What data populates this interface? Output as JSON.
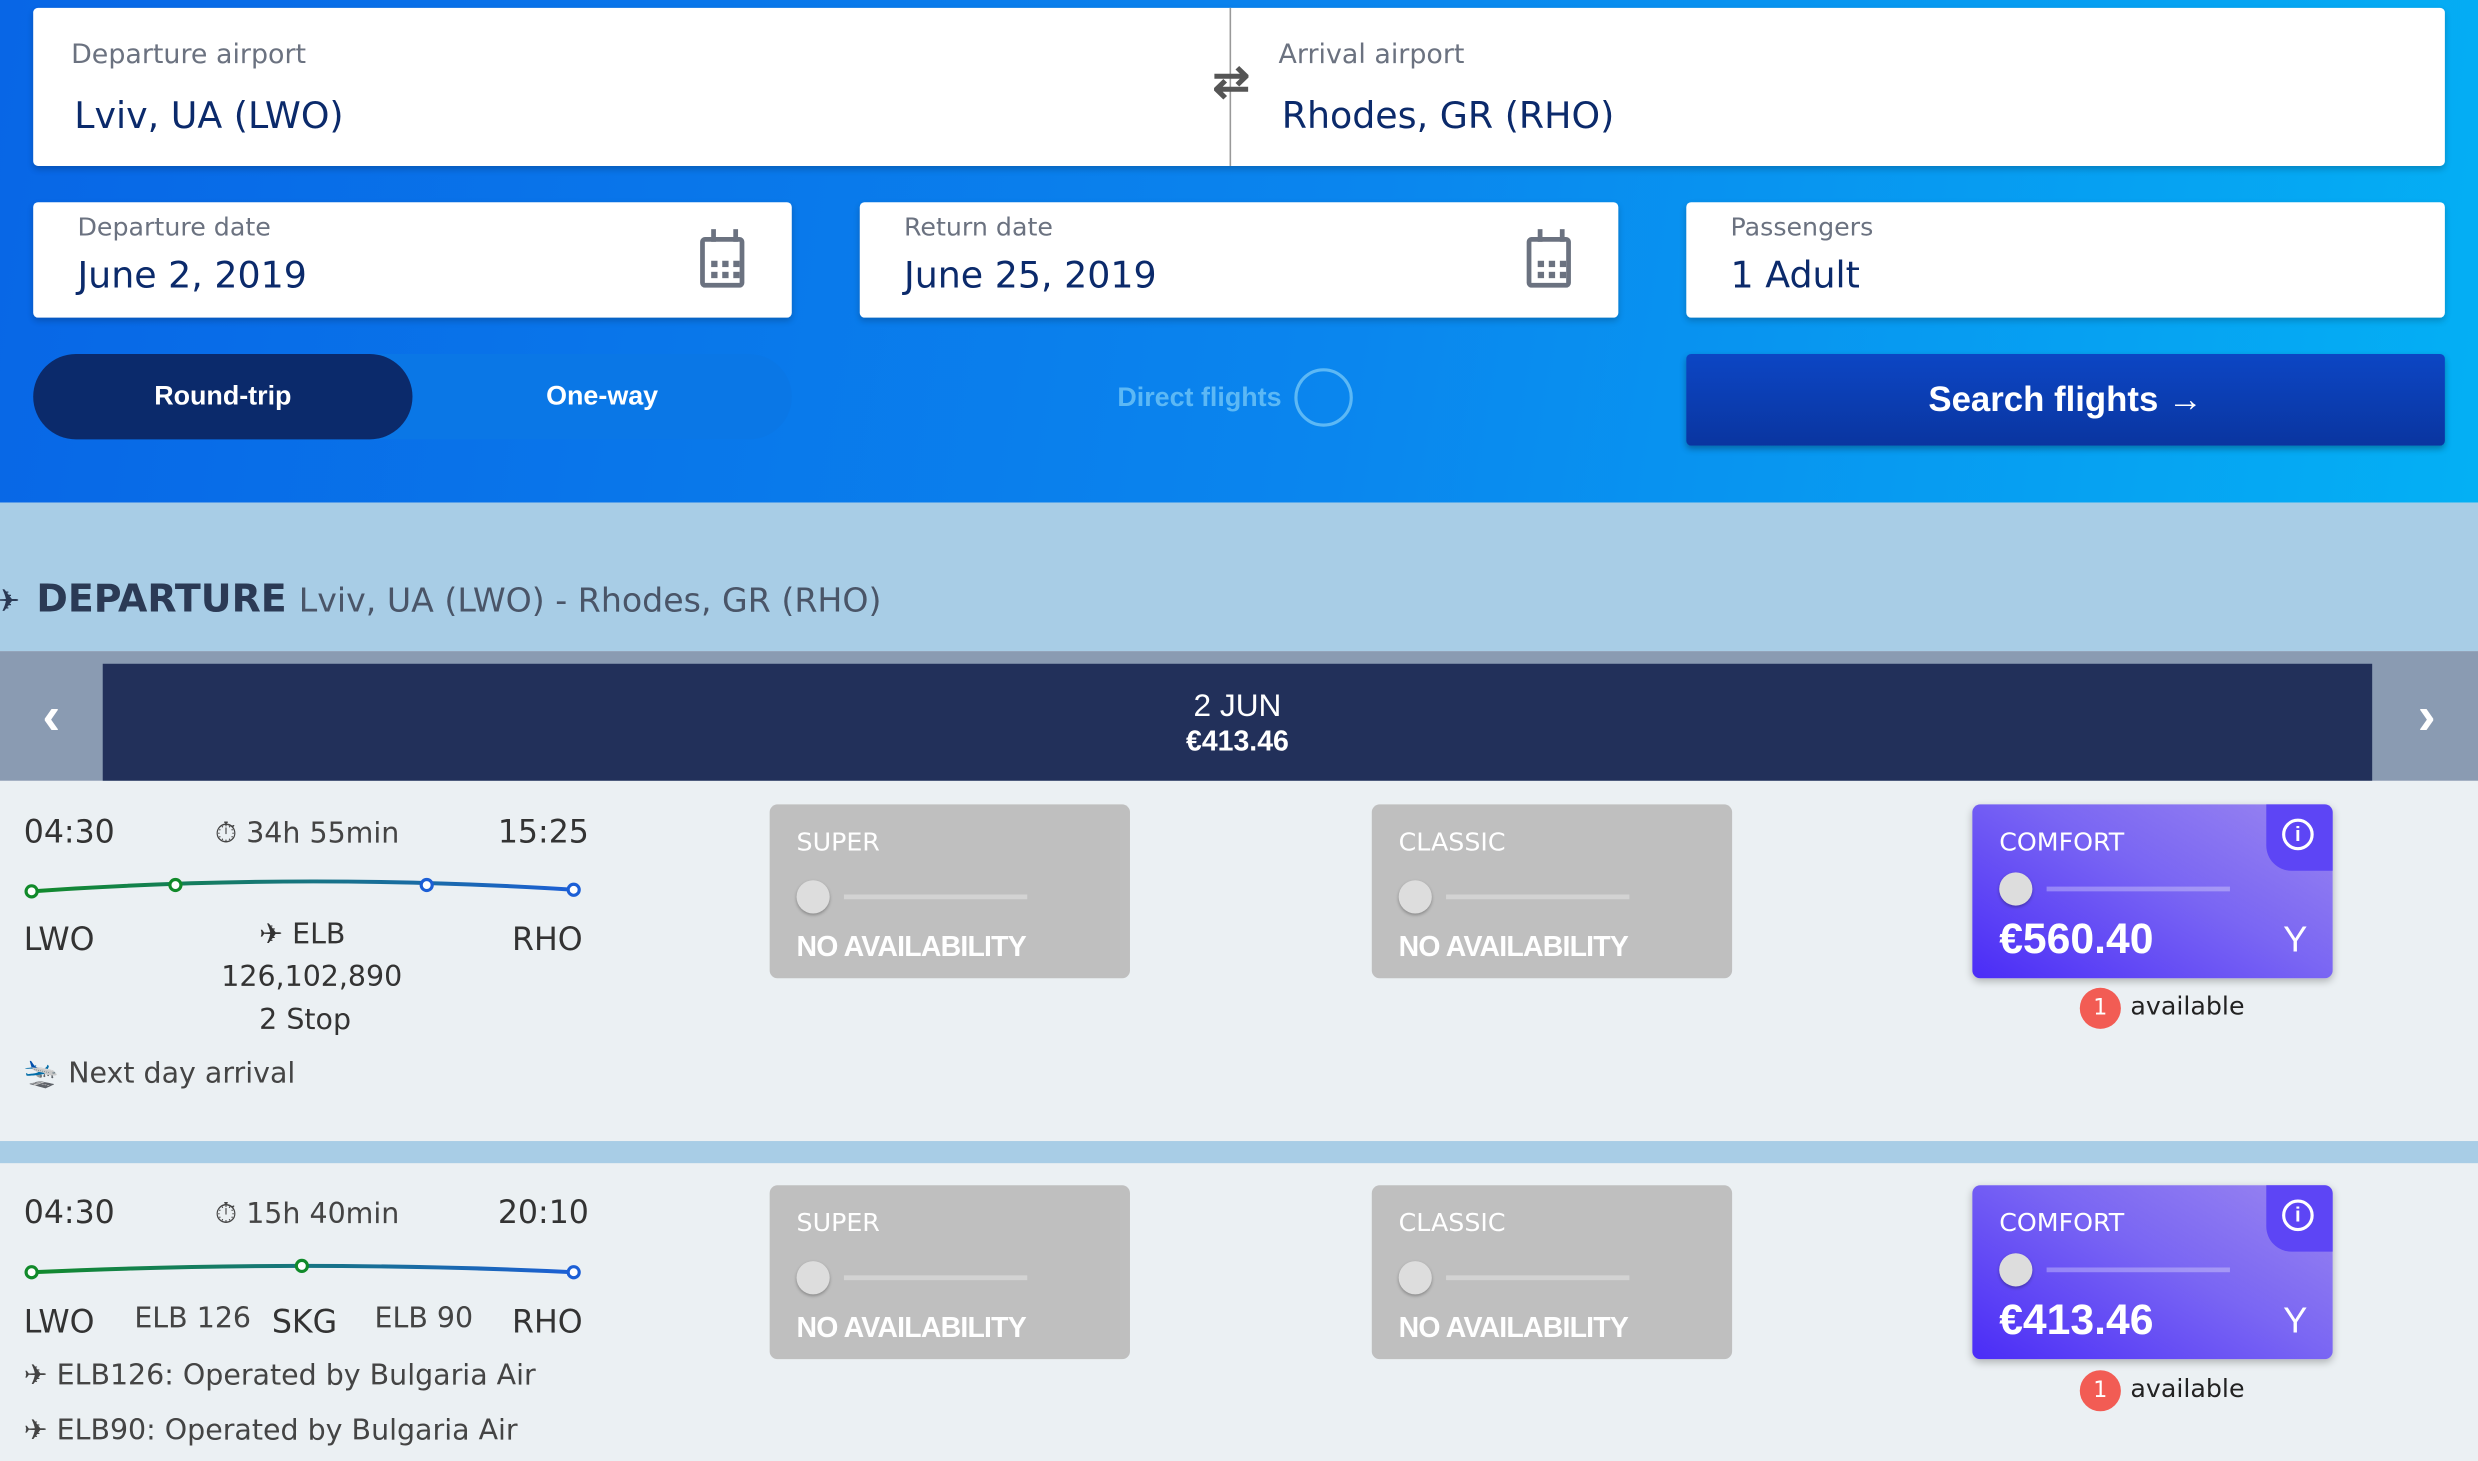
{
  "search": {
    "departure_label": "Departure airport",
    "departure_value": "Lviv, UA (LWO)",
    "arrival_label": "Arrival airport",
    "arrival_value": "Rhodes, GR (RHO)",
    "departure_date_label": "Departure date",
    "departure_date": "June 2, 2019",
    "return_date_label": "Return date",
    "return_date": "June 25, 2019",
    "passengers_label": "Passengers",
    "passengers": "1 Adult",
    "round_trip": "Round-trip",
    "one_way": "One-way",
    "trip_selected": "Round-trip",
    "direct_flights": "Direct flights",
    "direct_flights_on": false,
    "search_button": "Search flights"
  },
  "section": {
    "title": "DEPARTURE",
    "route": "Lviv, UA (LWO) - Rhodes, GR (RHO)"
  },
  "date_strip": {
    "date": "2 JUN",
    "price": "€413.46"
  },
  "flights": [
    {
      "dep": "04:30",
      "duration": "34h 55min",
      "arr": "15:25",
      "from": "LWO",
      "to": "RHO",
      "carrier": "ELB",
      "flight_numbers": "126,102,890",
      "stops": "2 Stop",
      "note": "Next day arrival",
      "fares": [
        {
          "name": "SUPER",
          "status": "NO AVAILABILITY"
        },
        {
          "name": "CLASSIC",
          "status": "NO AVAILABILITY"
        },
        {
          "name": "COMFORT",
          "price": "€560.40",
          "class": "Y",
          "available_count": "1",
          "available_label": "available"
        }
      ]
    },
    {
      "dep": "04:30",
      "duration": "15h 40min",
      "arr": "20:10",
      "from": "LWO",
      "via": "SKG",
      "to": "RHO",
      "leg1": "ELB 126",
      "leg2": "ELB 90",
      "operated": [
        "ELB126: Operated by Bulgaria Air",
        "ELB90: Operated by Bulgaria Air"
      ],
      "fares": [
        {
          "name": "SUPER",
          "status": "NO AVAILABILITY"
        },
        {
          "name": "CLASSIC",
          "status": "NO AVAILABILITY"
        },
        {
          "name": "COMFORT",
          "price": "€413.46",
          "class": "Y",
          "available_count": "1",
          "available_label": "available"
        }
      ]
    }
  ],
  "colors": {
    "hero_start": "#0866e6",
    "hero_end": "#04b0f4",
    "navy": "#0b2a6b",
    "comfort": "#5a3ef6",
    "badge": "#f25c54"
  }
}
